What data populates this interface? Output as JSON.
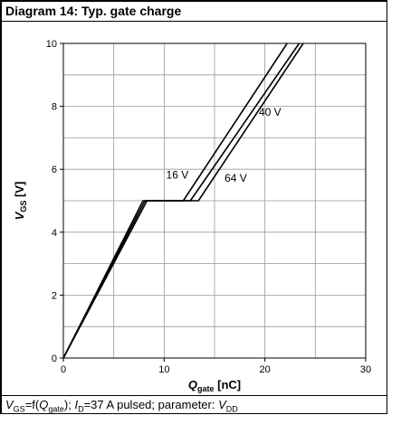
{
  "header": {
    "title": "Diagram 14: Typ. gate charge"
  },
  "footer": {
    "v": "V",
    "gs": "GS",
    "eq": "=f(",
    "q": "Q",
    "gate": "gate",
    "mid": "); ",
    "i": "I",
    "d": "D",
    "rest": "=37 A pulsed; parameter: ",
    "vv": "V",
    "dd": "DD"
  },
  "chart_data": {
    "type": "line",
    "title": "Diagram 14: Typ. gate charge",
    "xlabel": "Qgate [nC]",
    "ylabel": "VGS [V]",
    "xlim": [
      0,
      30
    ],
    "ylim": [
      0,
      10
    ],
    "xticks": [
      "0",
      "10",
      "20",
      "30"
    ],
    "yticks": [
      "0",
      "2",
      "4",
      "6",
      "8",
      "10"
    ],
    "grid": true,
    "series": [
      {
        "name": "16 V",
        "x": [
          0,
          7.9,
          11.9,
          22.2
        ],
        "y": [
          0,
          5.0,
          5.0,
          10.0
        ]
      },
      {
        "name": "40 V",
        "x": [
          0,
          8.1,
          12.6,
          23.4
        ],
        "y": [
          0,
          5.0,
          5.0,
          10.0
        ]
      },
      {
        "name": "64 V",
        "x": [
          0,
          8.3,
          13.4,
          23.8
        ],
        "y": [
          0,
          5.0,
          5.0,
          10.0
        ]
      }
    ],
    "annotations": [
      {
        "text": "16 V",
        "x": 10.2,
        "y": 5.7
      },
      {
        "text": "64 V",
        "x": 16.0,
        "y": 5.6
      },
      {
        "text": "40 V",
        "x": 19.4,
        "y": 7.7
      }
    ]
  }
}
